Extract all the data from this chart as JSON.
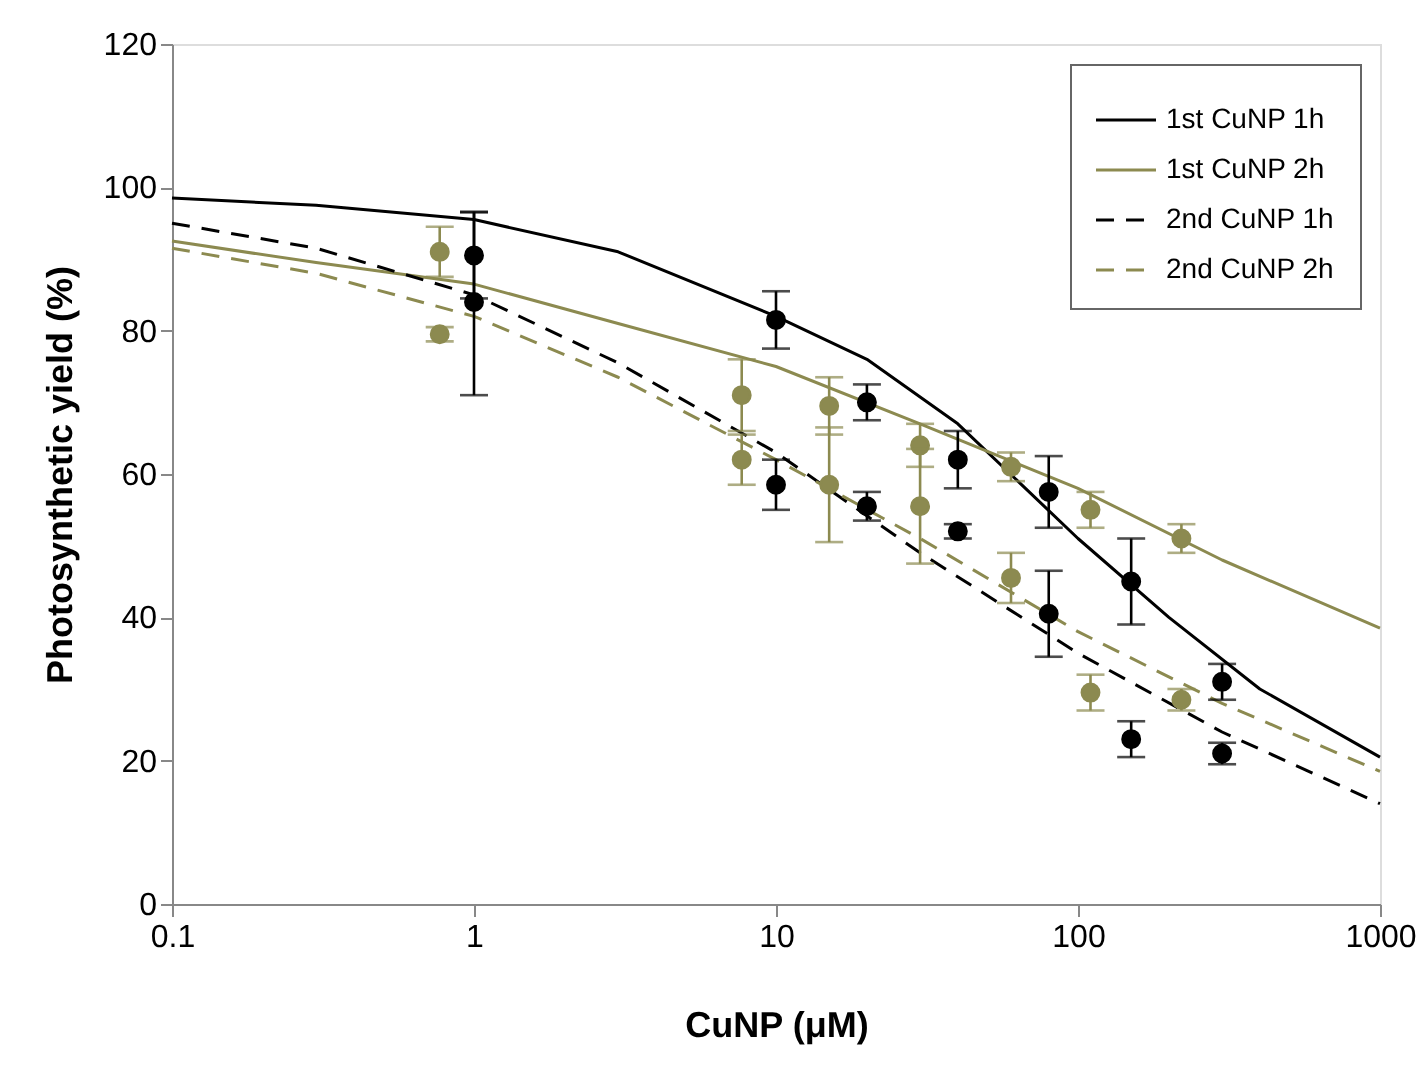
{
  "chart_data": {
    "type": "line",
    "xlabel": "CuNP (μM)",
    "ylabel": "Photosynthetic yield (%)",
    "log": "x",
    "xlim": [
      0.1,
      1000
    ],
    "xticks": [
      0.1,
      1,
      10,
      100,
      1000
    ],
    "ylim": [
      0,
      120
    ],
    "yticks": [
      0,
      20,
      40,
      60,
      80,
      100,
      120
    ],
    "legend": "top right",
    "series": [
      {
        "name": "1st CuNP 1h",
        "color": "#000000",
        "line_style": "solid",
        "x": [
          0.1,
          0.3,
          1,
          3,
          10,
          20,
          40,
          100,
          200,
          400,
          1000
        ],
        "values": [
          98.5,
          97.5,
          95.5,
          91,
          82,
          76,
          67,
          51,
          40,
          30,
          20.5
        ]
      },
      {
        "name": "1st CuNP 2h",
        "color": "#8c8a50",
        "line_style": "solid",
        "x": [
          0.1,
          0.3,
          1,
          3,
          10,
          30,
          100,
          300,
          1000
        ],
        "values": [
          92.5,
          89.5,
          86.5,
          81,
          75,
          67,
          58,
          48,
          38.5
        ]
      },
      {
        "name": "2nd CuNP 1h",
        "color": "#000000",
        "line_style": "dashed",
        "x": [
          0.1,
          0.3,
          1,
          3,
          10,
          30,
          100,
          300,
          1000
        ],
        "values": [
          95,
          91.5,
          85,
          75.5,
          63,
          49,
          35,
          24,
          14
        ]
      },
      {
        "name": "2nd CuNP 2h",
        "color": "#8c8a50",
        "line_style": "dashed",
        "x": [
          0.1,
          0.3,
          1,
          3,
          10,
          30,
          100,
          300,
          1000
        ],
        "values": [
          91.5,
          88,
          82,
          73.5,
          62,
          51,
          38,
          28,
          18.5
        ]
      },
      {
        "type": "scatter",
        "color": "#000000",
        "marker": "circle",
        "x": [
          1,
          10,
          20,
          40,
          80,
          150,
          300
        ],
        "values": [
          90.5,
          81.5,
          70,
          62,
          57.5,
          45,
          31
        ],
        "errors": [
          6,
          4,
          2.5,
          4,
          5,
          6,
          2.5
        ]
      },
      {
        "type": "scatter",
        "color": "#8c8a50",
        "marker": "circle",
        "x": [
          0.77,
          7.7,
          15,
          30,
          60,
          110,
          220
        ],
        "values": [
          91,
          71,
          69.5,
          64,
          61,
          55,
          51
        ],
        "errors": [
          3.5,
          5,
          4,
          3,
          2,
          2.5,
          2
        ]
      },
      {
        "type": "scatter",
        "color": "#000000",
        "marker": "circle",
        "x": [
          1,
          10,
          20,
          40,
          80,
          150,
          300
        ],
        "values": [
          84,
          58.5,
          55.5,
          52,
          40.5,
          23,
          21
        ],
        "errors": [
          [
            71,
            96.6
          ],
          3.5,
          2,
          1,
          6,
          2.5,
          1.5
        ]
      },
      {
        "type": "scatter",
        "color": "#8c8a50",
        "marker": "circle",
        "x": [
          0.77,
          7.7,
          15,
          30,
          60,
          110,
          220
        ],
        "values": [
          79.5,
          62,
          58.5,
          55.5,
          45.5,
          29.5,
          28.5
        ],
        "errors": [
          1,
          3.5,
          8,
          8,
          3.5,
          2.5,
          1.5
        ]
      }
    ]
  }
}
